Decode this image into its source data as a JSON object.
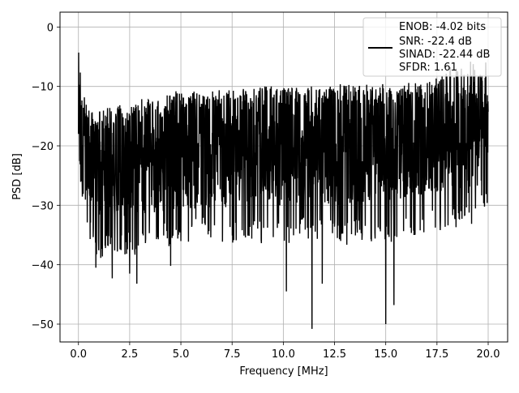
{
  "chart_data": {
    "type": "line",
    "xlabel": "Frequency [MHz]",
    "ylabel": "PSD [dB]",
    "xlim": [
      -0.9,
      20.95
    ],
    "ylim": [
      -53,
      2.5
    ],
    "grid": true,
    "legend_position": "top-right",
    "x_ticks": [
      0.0,
      2.5,
      5.0,
      7.5,
      10.0,
      12.5,
      15.0,
      17.5,
      20.0
    ],
    "x_tick_labels": [
      "0.0",
      "2.5",
      "5.0",
      "7.5",
      "10.0",
      "12.5",
      "15.0",
      "17.5",
      "20.0"
    ],
    "y_ticks": [
      0,
      -10,
      -20,
      -30,
      -40,
      -50
    ],
    "y_tick_labels": [
      "0",
      "−10",
      "−20",
      "−30",
      "−40",
      "−50"
    ],
    "legend_lines": [
      "ENOB: -4.02 bits",
      "SNR: -22.4 dB",
      "SINAD: -22.44 dB",
      "SFDR: 1.61"
    ],
    "series": [
      {
        "color": "#000000",
        "x_range": [
          0.0,
          20.0
        ],
        "envelope": {
          "x": [
            0.0,
            0.05,
            0.1,
            0.2,
            0.5,
            1.0,
            2.0,
            3.0,
            4.0,
            5.0,
            6.0,
            7.0,
            8.0,
            9.0,
            10.0,
            11.0,
            12.0,
            13.0,
            14.0,
            15.0,
            16.0,
            17.0,
            18.0,
            19.0,
            20.0
          ],
          "upper": [
            -12.0,
            -4.3,
            -8.0,
            -11.0,
            -13.0,
            -14.0,
            -13.0,
            -12.5,
            -11.5,
            -10.5,
            -11.0,
            -10.5,
            -10.0,
            -10.0,
            -10.0,
            -10.0,
            -10.0,
            -9.5,
            -9.5,
            -10.0,
            -10.0,
            -9.0,
            -7.0,
            -5.0,
            -6.0
          ],
          "lower": [
            -20.0,
            -29.0,
            -30.0,
            -33.0,
            -36.0,
            -39.0,
            -38.0,
            -39.0,
            -37.0,
            -37.0,
            -36.0,
            -37.0,
            -36.0,
            -36.5,
            -37.0,
            -36.0,
            -36.0,
            -37.0,
            -36.0,
            -37.0,
            -36.0,
            -35.0,
            -34.0,
            -34.0,
            -30.0
          ],
          "center": [
            -18.0,
            -15.0,
            -20.0,
            -22.0,
            -23.0,
            -23.0,
            -22.5,
            -22.0,
            -21.5,
            -21.0,
            -21.0,
            -20.5,
            -20.5,
            -20.0,
            -20.0,
            -20.0,
            -20.0,
            -20.0,
            -19.5,
            -19.5,
            -19.0,
            -18.5,
            -18.0,
            -17.5,
            -17.5
          ]
        },
        "deep_nulls": [
          {
            "x": 0.85,
            "y": -40.5
          },
          {
            "x": 1.65,
            "y": -42.3
          },
          {
            "x": 2.5,
            "y": -41.5
          },
          {
            "x": 2.85,
            "y": -43.2
          },
          {
            "x": 4.5,
            "y": -40.2
          },
          {
            "x": 10.15,
            "y": -44.5
          },
          {
            "x": 11.4,
            "y": -50.8
          },
          {
            "x": 11.9,
            "y": -43.2
          },
          {
            "x": 15.0,
            "y": -50.0
          },
          {
            "x": 15.4,
            "y": -46.8
          }
        ]
      }
    ]
  }
}
